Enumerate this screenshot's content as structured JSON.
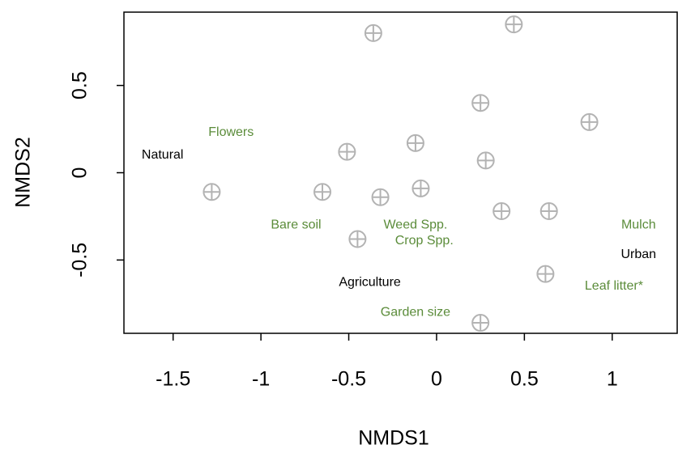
{
  "chart_data": {
    "type": "scatter",
    "xlabel": "NMDS1",
    "ylabel": "NMDS2",
    "x": [
      -0.36,
      0.44,
      0.25,
      0.87,
      -0.51,
      -0.12,
      0.28,
      -1.28,
      -0.65,
      -0.32,
      -0.09,
      0.37,
      0.64,
      -0.45,
      0.62,
      0.25
    ],
    "values": [
      0.8,
      0.85,
      0.4,
      0.29,
      0.12,
      0.17,
      0.07,
      -0.11,
      -0.11,
      -0.14,
      -0.09,
      -0.22,
      -0.22,
      -0.38,
      -0.58,
      -0.86
    ],
    "color": "#b3b3b3",
    "xlim": [
      -1.78,
      1.37
    ],
    "xticks": [
      -1.5,
      -1.0,
      -0.5,
      0.0,
      0.5,
      1.0
    ],
    "ylim": [
      -0.92,
      0.92
    ],
    "yticks": [
      -0.5,
      0.0,
      0.5
    ],
    "annotations": [
      {
        "text": "Flowers",
        "x": -1.17,
        "y": 0.23,
        "color": "#5b8c3a"
      },
      {
        "text": "Natural",
        "x": -1.56,
        "y": 0.1,
        "color": "#000000"
      },
      {
        "text": "Bare soil",
        "x": -0.8,
        "y": -0.3,
        "color": "#5b8c3a"
      },
      {
        "text": "Weed Spp.",
        "x": -0.12,
        "y": -0.3,
        "color": "#5b8c3a"
      },
      {
        "text": "Crop Spp.",
        "x": -0.07,
        "y": -0.39,
        "color": "#5b8c3a"
      },
      {
        "text": "Mulch",
        "x": 1.15,
        "y": -0.3,
        "color": "#5b8c3a"
      },
      {
        "text": "Urban",
        "x": 1.15,
        "y": -0.47,
        "color": "#000000"
      },
      {
        "text": "Agriculture",
        "x": -0.38,
        "y": -0.63,
        "color": "#000000"
      },
      {
        "text": "Leaf litter*",
        "x": 1.01,
        "y": -0.65,
        "color": "#5b8c3a"
      },
      {
        "text": "Garden size",
        "x": -0.12,
        "y": -0.8,
        "color": "#5b8c3a"
      }
    ]
  }
}
